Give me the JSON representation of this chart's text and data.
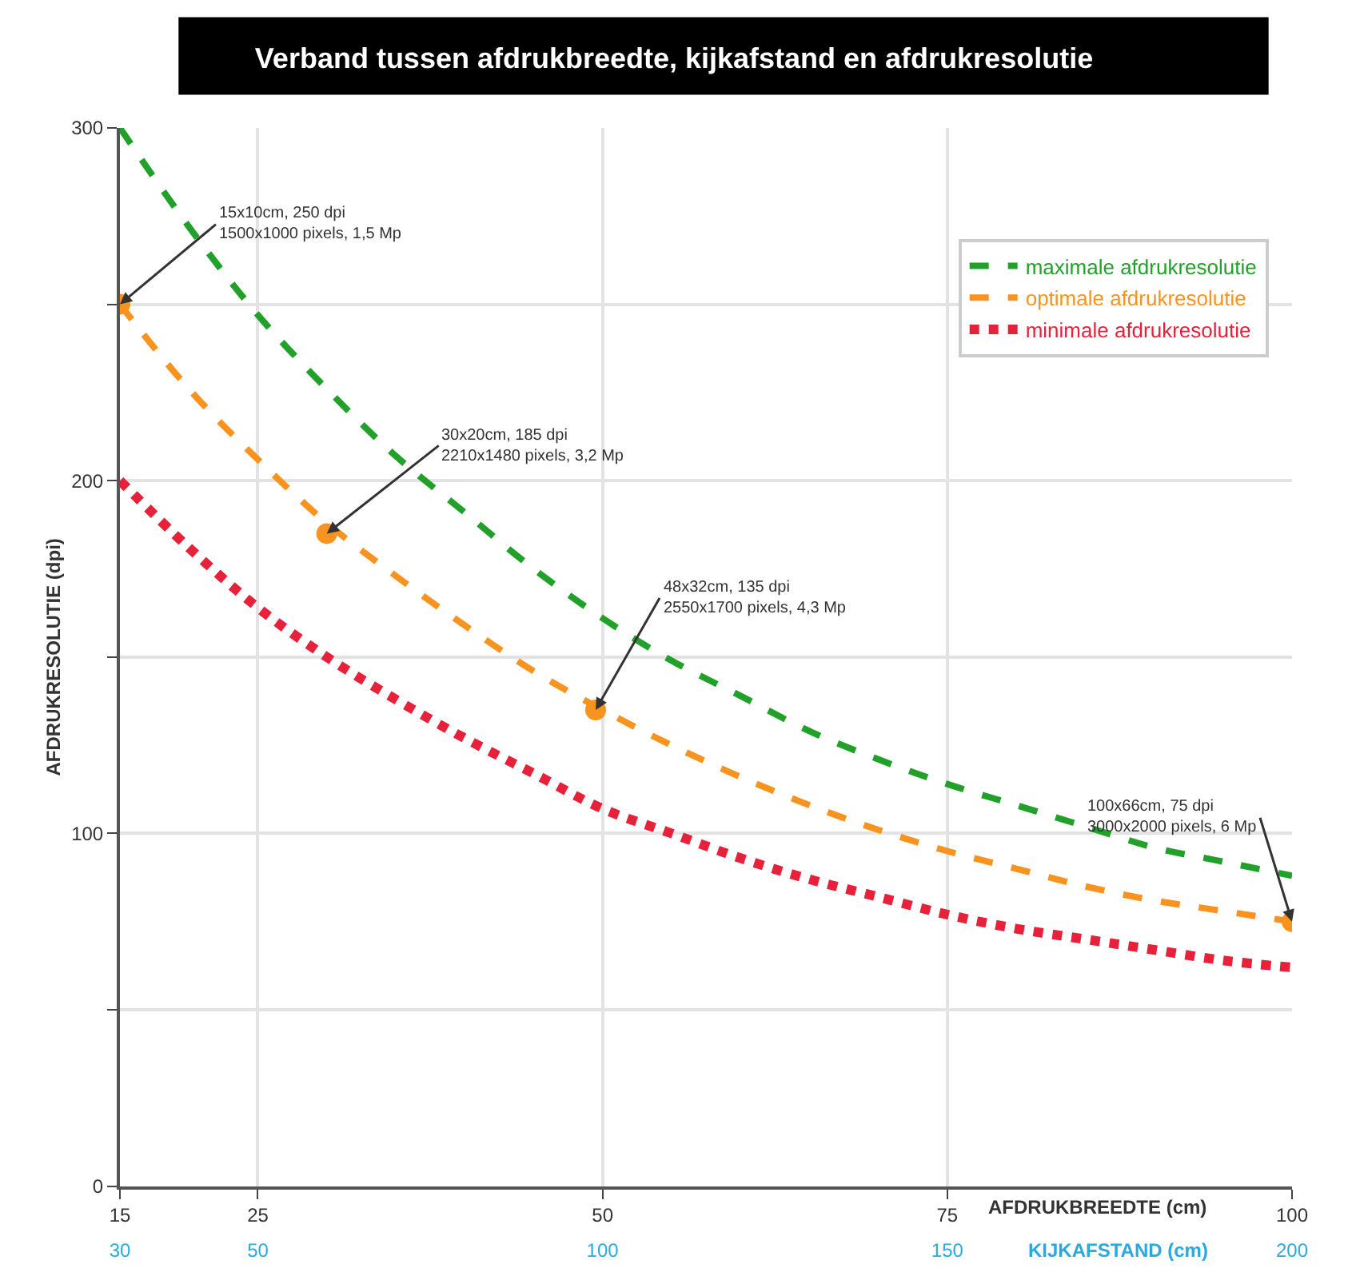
{
  "chart_data": {
    "type": "line",
    "title": "Verband tussen afdrukbreedte, kijkafstand en afdrukresolutie",
    "xlabel": "AFDRUKBREEDTE (cm)",
    "ylabel": "AFDRUKRESOLUTIE (dpi)",
    "x2label": "KIJKAFSTAND (cm)",
    "x": [
      15,
      20,
      25,
      30,
      35,
      40,
      45,
      50,
      55,
      60,
      65,
      70,
      75,
      80,
      85,
      90,
      95,
      100
    ],
    "series": [
      {
        "name": "maximale afdrukresolutie",
        "color": "#22a12a",
        "line_style": "dashed",
        "values": [
          300,
          272,
          247,
          226,
          207,
          191,
          175,
          161,
          149,
          139,
          129,
          121,
          114,
          108,
          102,
          96,
          92,
          88
        ]
      },
      {
        "name": "optimale afdrukresolutie",
        "color": "#f7931e",
        "line_style": "dashed",
        "values": [
          250,
          226,
          206,
          188,
          173,
          159,
          146,
          135,
          125,
          116,
          108,
          101,
          95,
          90,
          85,
          81,
          78,
          75
        ]
      },
      {
        "name": "minimale afdrukresolutie",
        "color": "#e8213a",
        "line_style": "dotted",
        "values": [
          200,
          181,
          164,
          150,
          138,
          127,
          117,
          107,
          100,
          93,
          87,
          82,
          77,
          73,
          70,
          67,
          64,
          62
        ]
      },
      {
        "type": "scatter",
        "color": "#f7931e",
        "marker": "circle",
        "x": [
          15,
          30,
          49.5,
          100
        ],
        "values": [
          250,
          185,
          135,
          75
        ]
      }
    ],
    "xlim": [
      15,
      100
    ],
    "xticks": [
      15,
      25,
      50,
      75,
      100
    ],
    "x2lim": [
      30,
      200
    ],
    "x2ticks": [
      30,
      50,
      100,
      150,
      200
    ],
    "ylim": [
      0,
      300
    ],
    "yticks": [
      0,
      {
        "value": 50,
        "label": null
      },
      100,
      {
        "value": 150,
        "label": null
      },
      200,
      {
        "value": 250,
        "label": null
      },
      300
    ],
    "grid": true,
    "legend": "top right",
    "annotations": [
      {
        "text": "15x10cm, 250 dpi\n1500x1000 pixels, 1,5 Mp",
        "x": 15,
        "y": 250
      },
      {
        "text": "30x20cm, 185 dpi\n2210x1480 pixels, 3,2 Mp",
        "x": 30,
        "y": 185
      },
      {
        "text": "48x32cm, 135 dpi\n2550x1700 pixels, 4,3 Mp",
        "x": 49.5,
        "y": 135
      },
      {
        "text": "100x66cm, 75 dpi\n3000x2000 pixels, 6 Mp",
        "x": 100,
        "y": 75
      }
    ]
  }
}
